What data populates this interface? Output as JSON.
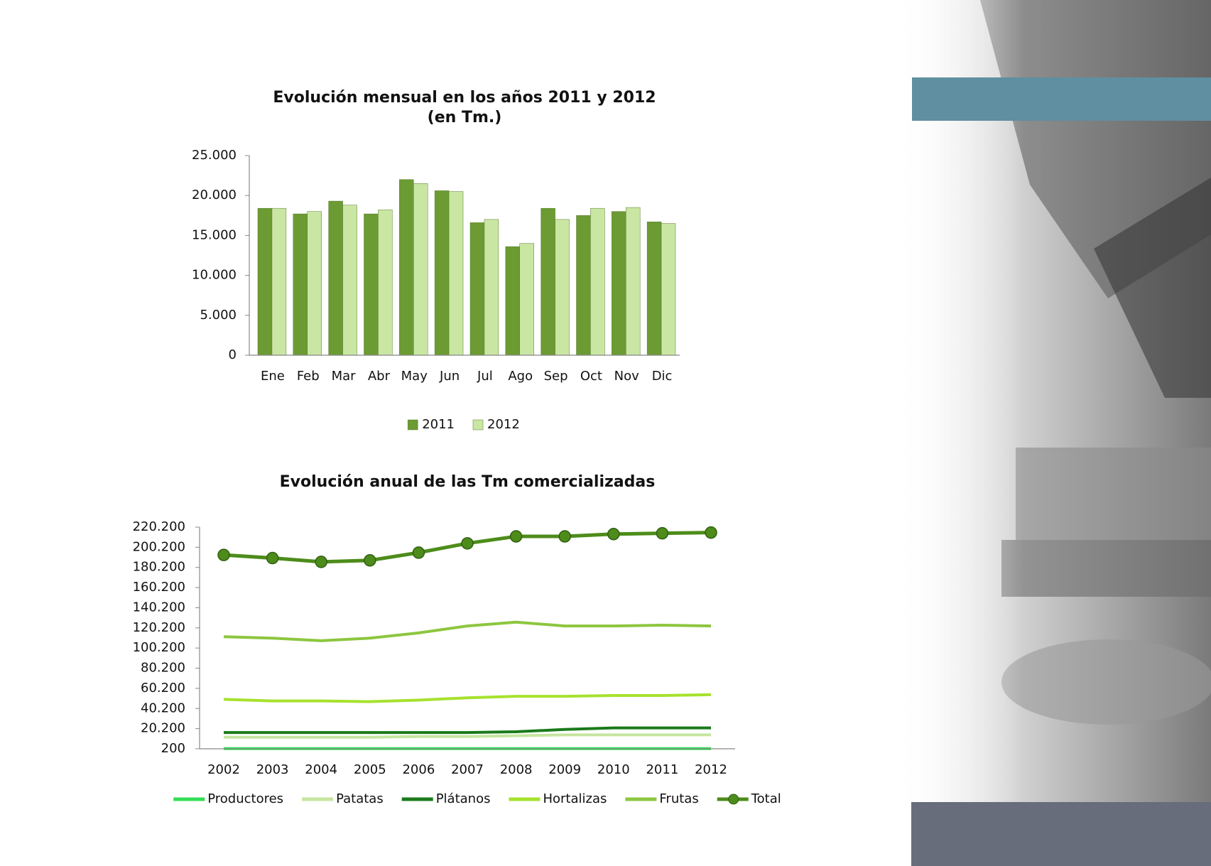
{
  "chart_data": [
    {
      "type": "bar",
      "title": "Evolución mensual en los años 2011 y 2012",
      "subtitle": "(en Tm.)",
      "categories": [
        "Ene",
        "Feb",
        "Mar",
        "Abr",
        "May",
        "Jun",
        "Jul",
        "Ago",
        "Sep",
        "Oct",
        "Nov",
        "Dic"
      ],
      "series": [
        {
          "name": "2011",
          "color": "#6b9b32",
          "values": [
            18400,
            17700,
            19300,
            17700,
            22000,
            20600,
            16600,
            13600,
            18400,
            17500,
            18000,
            16700
          ]
        },
        {
          "name": "2012",
          "color": "#c9e6a3",
          "values": [
            18400,
            18000,
            18800,
            18200,
            21500,
            20500,
            17000,
            14000,
            17000,
            18400,
            18500,
            16500
          ]
        }
      ],
      "ylim": [
        0,
        25000
      ],
      "yticks": [
        0,
        {
          "value": 5000,
          "label": "5.000"
        },
        {
          "value": 10000,
          "label": "10.000"
        },
        {
          "value": 15000,
          "label": "15.000"
        },
        {
          "value": 20000,
          "label": "20.000"
        },
        {
          "value": 25000,
          "label": "25.000"
        }
      ],
      "legend": "bottom"
    },
    {
      "type": "line",
      "title": "Evolución anual de las Tm comercializadas",
      "categories": [
        "2002",
        "2003",
        "2004",
        "2005",
        "2006",
        "2007",
        "2008",
        "2009",
        "2010",
        "2011",
        "2012"
      ],
      "series": [
        {
          "name": "Productores",
          "color": "#33dd55",
          "values": [
            400,
            400,
            400,
            400,
            400,
            400,
            400,
            400,
            400,
            400,
            400
          ]
        },
        {
          "name": "Patatas",
          "color": "#c6e6a0",
          "values": [
            11700,
            11700,
            11700,
            11700,
            12400,
            12400,
            13200,
            14000,
            14000,
            14000,
            14000
          ]
        },
        {
          "name": "Plátanos",
          "color": "#1a7a1a",
          "values": [
            16300,
            16300,
            16300,
            16300,
            16300,
            16300,
            17100,
            19400,
            20900,
            20900,
            20900
          ]
        },
        {
          "name": "Hortalizas",
          "color": "#a6e22e",
          "values": [
            49300,
            47700,
            47700,
            47000,
            48500,
            50800,
            52300,
            52300,
            53100,
            53100,
            53900
          ]
        },
        {
          "name": "Frutas",
          "color": "#8dc63f",
          "values": [
            111400,
            110000,
            107500,
            110000,
            115200,
            122100,
            125900,
            122100,
            122100,
            122900,
            122100
          ]
        },
        {
          "name": "Total",
          "color": "#4d8c1a",
          "markers": true,
          "values": [
            192600,
            189500,
            185700,
            187200,
            194900,
            204100,
            211000,
            211000,
            213300,
            214100,
            214800
          ]
        }
      ],
      "ylim": [
        200,
        220200
      ],
      "yticks": [
        200,
        {
          "value": 20200,
          "label": "20.200"
        },
        {
          "value": 40200,
          "label": "40.200"
        },
        {
          "value": 60200,
          "label": "60.200"
        },
        {
          "value": 80200,
          "label": "80.200"
        },
        {
          "value": 100200,
          "label": "100.200"
        },
        {
          "value": 120200,
          "label": "120.200"
        },
        {
          "value": 140200,
          "label": "140.200"
        },
        {
          "value": 160200,
          "label": "160.200"
        },
        {
          "value": 180200,
          "label": "180.200"
        },
        {
          "value": 200200,
          "label": "200.200"
        },
        {
          "value": 220200,
          "label": "220.200"
        }
      ],
      "legend": "bottom"
    }
  ]
}
